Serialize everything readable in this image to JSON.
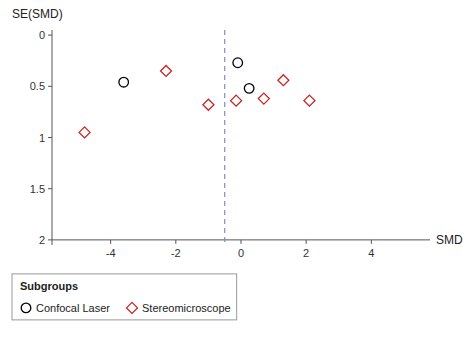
{
  "chart_data": {
    "type": "scatter",
    "x_label": "SMD",
    "y_label": "SE(SMD)",
    "legend_title": "Subgroups",
    "series": [
      {
        "name": "Confocal Laser",
        "color": "#000000",
        "marker": "circle",
        "x": [
          -3.6,
          -0.1,
          0.25
        ],
        "values": [
          0.46,
          0.27,
          0.52
        ]
      },
      {
        "name": "Stereomicroscope",
        "color": "#cc2222",
        "marker": "diamond",
        "x": [
          -4.8,
          -2.3,
          -1.0,
          -0.15,
          0.7,
          1.3,
          2.1
        ],
        "values": [
          0.95,
          0.35,
          0.68,
          0.64,
          0.62,
          0.44,
          0.64
        ]
      }
    ],
    "annotations": [
      {
        "x": -0.5,
        "color": "#8888cc",
        "line_style": "dashed"
      }
    ],
    "xlim": [
      -5.8,
      5.8
    ],
    "ylim": [
      2.05,
      -0.05
    ],
    "xticks": [
      -4,
      -2,
      0,
      2,
      4
    ],
    "yticks": [
      0,
      0.5,
      1,
      1.5,
      2
    ],
    "grid": false,
    "legend": "bottom"
  }
}
